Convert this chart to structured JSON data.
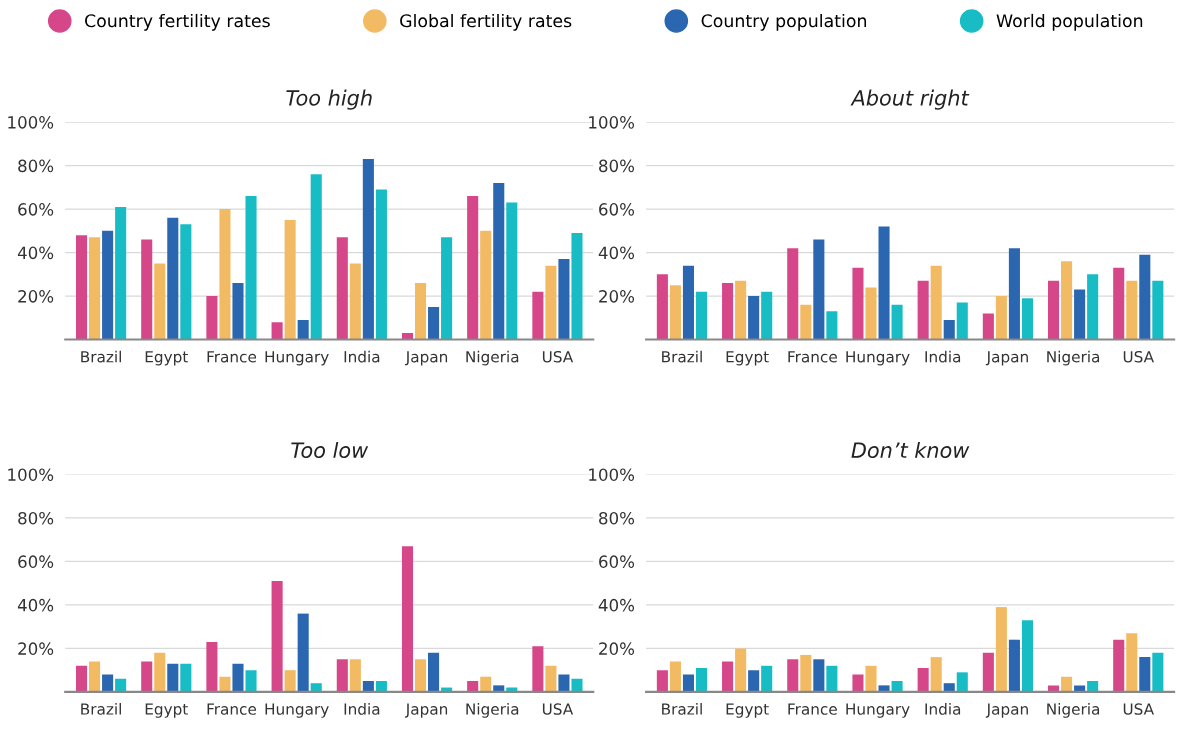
{
  "chart_data": [
    {
      "type": "bar",
      "title": "Too high",
      "categories": [
        "Brazil",
        "Egypt",
        "France",
        "Hungary",
        "India",
        "Japan",
        "Nigeria",
        "USA"
      ],
      "ylim": [
        0,
        100
      ],
      "yticks": [
        {
          "value": 20,
          "label": "20%"
        },
        {
          "value": 40,
          "label": "40%"
        },
        {
          "value": 60,
          "label": "60%"
        },
        {
          "value": 80,
          "label": "80%"
        },
        {
          "value": 100,
          "label": "100%"
        }
      ],
      "grid": "y",
      "legend": "top",
      "series": [
        {
          "name": "Country fertility rates",
          "color": "#d6478a",
          "values": [
            48,
            46,
            20,
            8,
            47,
            3,
            66,
            22
          ]
        },
        {
          "name": "Global fertility rates",
          "color": "#f2bb63",
          "values": [
            47,
            35,
            60,
            55,
            35,
            26,
            50,
            34
          ]
        },
        {
          "name": "Country population",
          "color": "#2a67b0",
          "values": [
            50,
            56,
            26,
            9,
            83,
            15,
            72,
            37
          ]
        },
        {
          "name": "World population",
          "color": "#17bcc4",
          "values": [
            61,
            53,
            66,
            76,
            69,
            47,
            63,
            49
          ]
        }
      ]
    },
    {
      "type": "bar",
      "title": "About right",
      "categories": [
        "Brazil",
        "Egypt",
        "France",
        "Hungary",
        "India",
        "Japan",
        "Nigeria",
        "USA"
      ],
      "ylim": [
        0,
        100
      ],
      "yticks": [
        {
          "value": 20,
          "label": "20%"
        },
        {
          "value": 40,
          "label": "40%"
        },
        {
          "value": 60,
          "label": "60%"
        },
        {
          "value": 80,
          "label": "80%"
        },
        {
          "value": 100,
          "label": "100%"
        }
      ],
      "grid": "y",
      "series": [
        {
          "color": "#d6478a",
          "values": [
            30,
            26,
            42,
            33,
            27,
            12,
            27,
            33
          ]
        },
        {
          "color": "#f2bb63",
          "values": [
            25,
            27,
            16,
            24,
            34,
            20,
            36,
            27
          ]
        },
        {
          "color": "#2a67b0",
          "values": [
            34,
            20,
            46,
            52,
            9,
            42,
            23,
            39
          ]
        },
        {
          "color": "#17bcc4",
          "values": [
            22,
            22,
            13,
            16,
            17,
            19,
            30,
            27
          ]
        }
      ]
    },
    {
      "type": "bar",
      "title": "Too low",
      "categories": [
        "Brazil",
        "Egypt",
        "France",
        "Hungary",
        "India",
        "Japan",
        "Nigeria",
        "USA"
      ],
      "ylim": [
        0,
        100
      ],
      "yticks": [
        {
          "value": 20,
          "label": "20%"
        },
        {
          "value": 40,
          "label": "40%"
        },
        {
          "value": 60,
          "label": "60%"
        },
        {
          "value": 80,
          "label": "80%"
        },
        {
          "value": 100,
          "label": "100%"
        }
      ],
      "grid": "y",
      "series": [
        {
          "color": "#d6478a",
          "values": [
            12,
            14,
            23,
            51,
            15,
            67,
            5,
            21
          ]
        },
        {
          "color": "#f2bb63",
          "values": [
            14,
            18,
            7,
            10,
            15,
            15,
            7,
            12
          ]
        },
        {
          "color": "#2a67b0",
          "values": [
            8,
            13,
            13,
            36,
            5,
            18,
            3,
            8
          ]
        },
        {
          "color": "#17bcc4",
          "values": [
            6,
            13,
            10,
            4,
            5,
            2,
            2,
            6
          ]
        }
      ]
    },
    {
      "type": "bar",
      "title": "Don’t know",
      "categories": [
        "Brazil",
        "Egypt",
        "France",
        "Hungary",
        "India",
        "Japan",
        "Nigeria",
        "USA"
      ],
      "ylim": [
        0,
        100
      ],
      "yticks": [
        {
          "value": 20,
          "label": "20%"
        },
        {
          "value": 40,
          "label": "40%"
        },
        {
          "value": 60,
          "label": "60%"
        },
        {
          "value": 80,
          "label": "80%"
        },
        {
          "value": 100,
          "label": "100%"
        }
      ],
      "grid": "y",
      "series": [
        {
          "color": "#d6478a",
          "values": [
            10,
            14,
            15,
            8,
            11,
            18,
            3,
            24
          ]
        },
        {
          "color": "#f2bb63",
          "values": [
            14,
            20,
            17,
            12,
            16,
            39,
            7,
            27
          ]
        },
        {
          "color": "#2a67b0",
          "values": [
            8,
            10,
            15,
            3,
            4,
            24,
            3,
            16
          ]
        },
        {
          "color": "#17bcc4",
          "values": [
            11,
            12,
            12,
            5,
            9,
            33,
            5,
            18
          ]
        }
      ]
    }
  ]
}
